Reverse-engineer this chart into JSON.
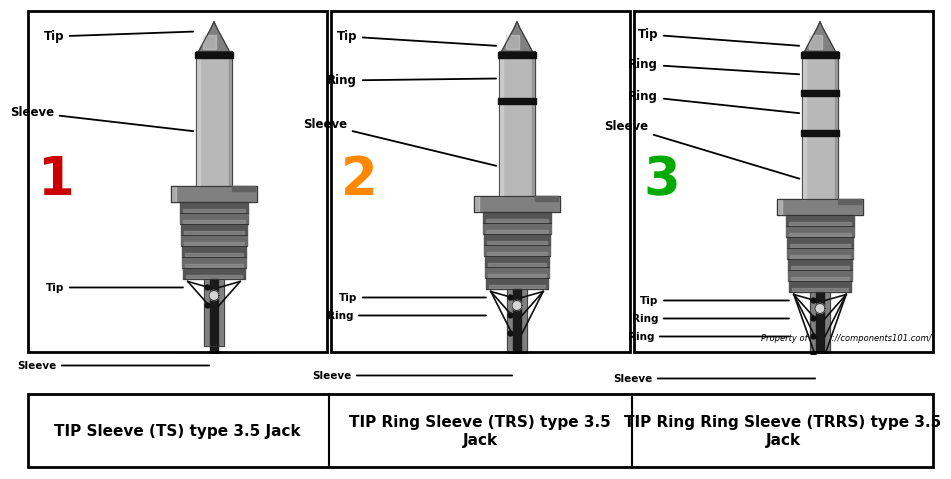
{
  "bg_color": "#ffffff",
  "panel_titles": [
    "TIP Sleeve (TS) type 3.5 Jack",
    "TIP Ring Sleeve (TRS) type 3.5\nJack",
    "TIP Ring Ring Sleeve (TRRS) type 3.5\nJack"
  ],
  "numbers": [
    "1",
    "2",
    "3"
  ],
  "number_colors": [
    "#cc0000",
    "#ff8800",
    "#00aa00"
  ],
  "watermark": "Property of https://components101.com/",
  "jack_types": [
    "TS",
    "TRS",
    "TRRS"
  ],
  "silver": "#b8b8b8",
  "silver_light": "#d4d4d4",
  "silver_dark": "#808080",
  "silver_darker": "#606060",
  "black": "#101010",
  "dark_gray": "#383838"
}
